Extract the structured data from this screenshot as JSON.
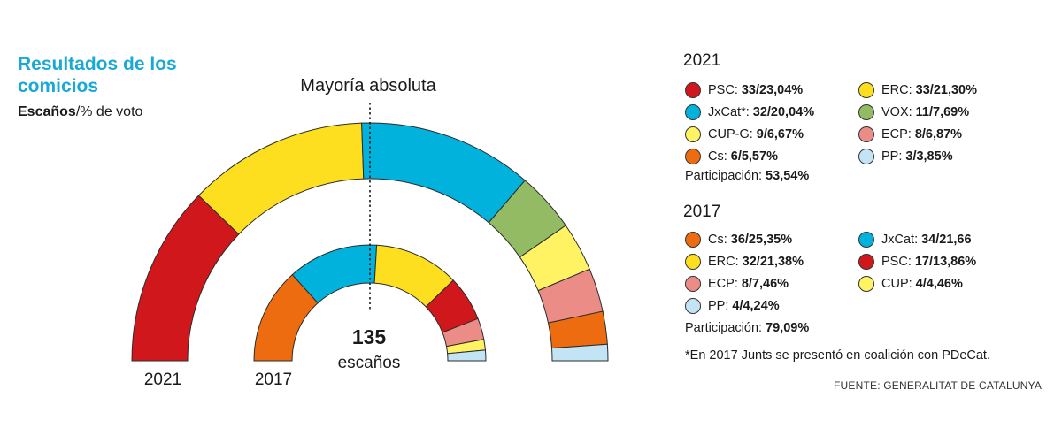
{
  "header": {
    "title": "Resultados de los comicios",
    "subtitle_bold": "Escaños",
    "subtitle_rest": "/% de voto"
  },
  "chart_data": {
    "type": "parliament-semicircle",
    "annotation_majority": "Mayoría absoluta",
    "center_total": "135",
    "center_label": "escaños",
    "rings": [
      {
        "label": "2021",
        "total_seats": 135,
        "seats": [
          {
            "party": "PSC",
            "seats": 33,
            "color": "#d0181c"
          },
          {
            "party": "ERC",
            "seats": 33,
            "color": "#fddf1f"
          },
          {
            "party": "JxCat*",
            "seats": 32,
            "color": "#00b2dc"
          },
          {
            "party": "VOX",
            "seats": 11,
            "color": "#93bb63"
          },
          {
            "party": "CUP-G",
            "seats": 9,
            "color": "#fff263"
          },
          {
            "party": "ECP",
            "seats": 8,
            "color": "#eb8c87"
          },
          {
            "party": "Cs",
            "seats": 6,
            "color": "#ed6c10"
          },
          {
            "party": "PP",
            "seats": 3,
            "color": "#c3e4f4"
          }
        ]
      },
      {
        "label": "2017",
        "total_seats": 135,
        "seats": [
          {
            "party": "Cs",
            "seats": 36,
            "color": "#ed6c10"
          },
          {
            "party": "JxCat",
            "seats": 34,
            "color": "#00b2dc"
          },
          {
            "party": "ERC",
            "seats": 32,
            "color": "#fddf1f"
          },
          {
            "party": "PSC",
            "seats": 17,
            "color": "#d0181c"
          },
          {
            "party": "ECP",
            "seats": 8,
            "color": "#eb8c87"
          },
          {
            "party": "CUP",
            "seats": 4,
            "color": "#fff263"
          },
          {
            "party": "PP",
            "seats": 4,
            "color": "#c3e4f4"
          }
        ]
      }
    ]
  },
  "legend": {
    "y2021": {
      "year": "2021",
      "items": [
        {
          "party": "PSC:",
          "value": "33/23,04%",
          "color": "#d0181c"
        },
        {
          "party": "ERC:",
          "value": "33/21,30%",
          "color": "#fddf1f"
        },
        {
          "party": "JxCat*:",
          "value": "32/20,04%",
          "color": "#00b2dc"
        },
        {
          "party": "VOX:",
          "value": "11/7,69%",
          "color": "#93bb63"
        },
        {
          "party": "CUP-G:",
          "value": "9/6,67%",
          "color": "#fff263"
        },
        {
          "party": "ECP:",
          "value": "8/6,87%",
          "color": "#eb8c87"
        },
        {
          "party": "Cs:",
          "value": "6/5,57%",
          "color": "#ed6c10"
        },
        {
          "party": "PP:",
          "value": "3/3,85%",
          "color": "#c3e4f4"
        }
      ],
      "participation_label": "Participación:",
      "participation_value": "53,54%"
    },
    "y2017": {
      "year": "2017",
      "items": [
        {
          "party": "Cs:",
          "value": "36/25,35%",
          "color": "#ed6c10"
        },
        {
          "party": "JxCat:",
          "value": "34/21,66",
          "color": "#00b2dc"
        },
        {
          "party": "ERC:",
          "value": "32/21,38%",
          "color": "#fddf1f"
        },
        {
          "party": "PSC:",
          "value": "17/13,86%",
          "color": "#d0181c"
        },
        {
          "party": "ECP:",
          "value": "8/7,46%",
          "color": "#eb8c87"
        },
        {
          "party": "CUP:",
          "value": "4/4,46%",
          "color": "#fff263"
        },
        {
          "party": "PP:",
          "value": "4/4,24%",
          "color": "#c3e4f4"
        }
      ],
      "participation_label": "Participación:",
      "participation_value": "79,09%"
    }
  },
  "footnote": "*En 2017 Junts se presentó en coalición con PDeCat.",
  "source": "FUENTE: GENERALITAT DE CATALUNYA"
}
